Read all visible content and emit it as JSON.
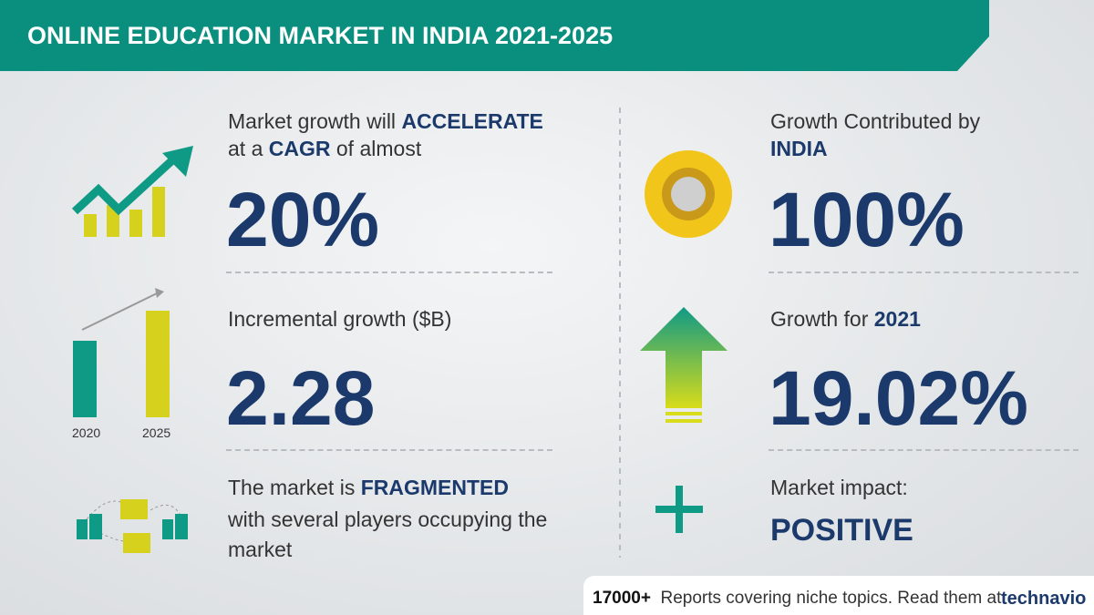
{
  "header": {
    "title": "ONLINE EDUCATION MARKET IN INDIA 2021-2025"
  },
  "left": [
    {
      "text": [
        "Market growth will",
        "ACCELERATE",
        "at a",
        "CAGR",
        "of almost"
      ],
      "figure": "20%"
    },
    {
      "text": [
        "Incremental growth ($B)"
      ],
      "figure": "2.28",
      "icon_labels": [
        "2020",
        "2025"
      ]
    },
    {
      "text": [
        "The market is",
        "FRAGMENTED",
        "with several players occupying the market"
      ]
    }
  ],
  "right": [
    {
      "text": [
        "Growth Contributed by",
        "INDIA"
      ],
      "figure": "100%"
    },
    {
      "text": [
        "Growth for",
        "2021"
      ],
      "figure": "19.02%"
    },
    {
      "text": [
        "Market impact:",
        "POSITIVE"
      ]
    }
  ],
  "footer": {
    "count": "17000+",
    "text": "Reports covering niche topics. Read them at",
    "brand": "technavio"
  }
}
